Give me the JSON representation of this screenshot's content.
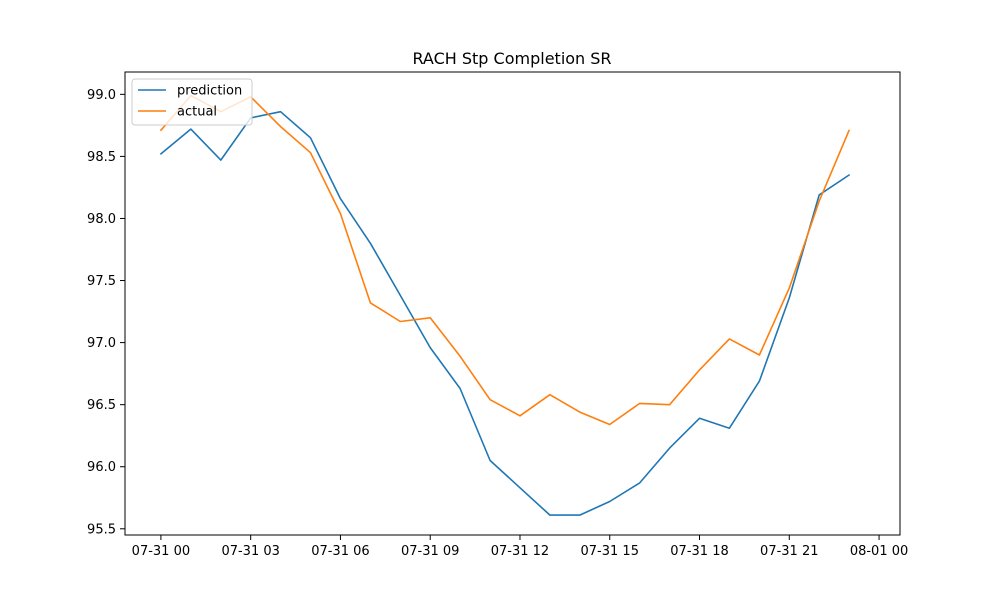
{
  "chart_data": {
    "type": "line",
    "title": "RACH Stp Completion SR",
    "xlabel": "",
    "ylabel": "",
    "x": [
      "07-31 00",
      "07-31 01",
      "07-31 02",
      "07-31 03",
      "07-31 04",
      "07-31 05",
      "07-31 06",
      "07-31 07",
      "07-31 08",
      "07-31 09",
      "07-31 10",
      "07-31 11",
      "07-31 12",
      "07-31 13",
      "07-31 14",
      "07-31 15",
      "07-31 16",
      "07-31 17",
      "07-31 18",
      "07-31 19",
      "07-31 20",
      "07-31 21",
      "07-31 22",
      "07-31 23"
    ],
    "x_ticks": [
      "07-31 00",
      "07-31 03",
      "07-31 06",
      "07-31 09",
      "07-31 12",
      "07-31 15",
      "07-31 18",
      "07-31 21",
      "08-01 00"
    ],
    "y_ticks": [
      95.5,
      96.0,
      96.5,
      97.0,
      97.5,
      98.0,
      98.5,
      99.0
    ],
    "ylim": [
      95.45,
      99.18
    ],
    "xlim_hours": [
      -1.2,
      24.7
    ],
    "series": [
      {
        "name": "prediction",
        "color": "#1f77b4",
        "values": [
          98.52,
          98.72,
          98.47,
          98.81,
          98.86,
          98.65,
          98.16,
          97.8,
          97.38,
          96.96,
          96.63,
          96.05,
          95.83,
          95.61,
          95.61,
          95.72,
          95.87,
          96.15,
          96.39,
          96.31,
          96.69,
          97.36,
          98.19,
          98.35
        ]
      },
      {
        "name": "actual",
        "color": "#ff7f0e",
        "values": [
          98.71,
          98.99,
          98.86,
          98.98,
          98.74,
          98.53,
          98.04,
          97.32,
          97.17,
          97.2,
          96.89,
          96.54,
          96.41,
          96.58,
          96.44,
          96.34,
          96.51,
          96.5,
          96.78,
          97.03,
          96.9,
          97.44,
          98.14,
          98.71
        ]
      }
    ],
    "legend": "upper-left",
    "grid": false
  }
}
